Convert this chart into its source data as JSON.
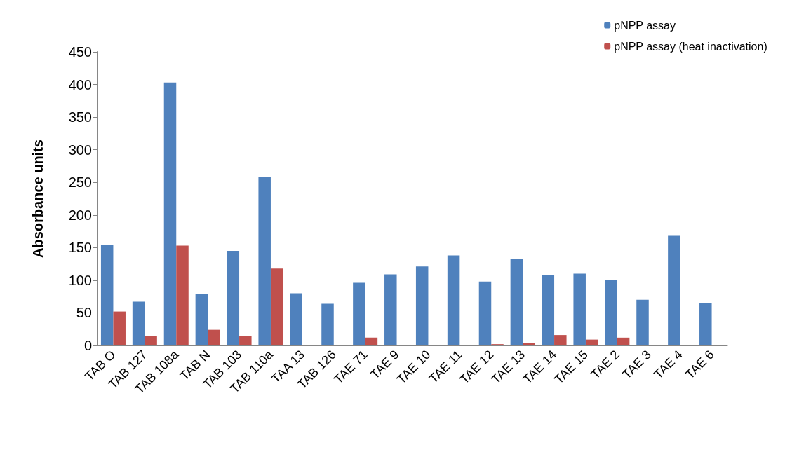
{
  "chart_data": {
    "type": "bar",
    "ylabel": "Absorbance units",
    "categories": [
      "TAB O",
      "TAB 127",
      "TAB 108a",
      "TAB N",
      "TAB 103",
      "TAB 110a",
      "TAA 13",
      "TAB 126",
      "TAE 71",
      "TAE 9",
      "TAE 10",
      "TAE 11",
      "TAE 12",
      "TAE 13",
      "TAE 14",
      "TAE 15",
      "TAE 2",
      "TAE 3",
      "TAE 4",
      "TAE 6"
    ],
    "series": [
      {
        "name": "pNPP assay",
        "color": "#4f81bd",
        "values": [
          154,
          67,
          403,
          79,
          145,
          258,
          80,
          64,
          96,
          109,
          121,
          138,
          98,
          133,
          108,
          110,
          100,
          70,
          168,
          65
        ]
      },
      {
        "name": "pNPP assay (heat inactivation)",
        "color": "#c0504d",
        "values": [
          52,
          14,
          153,
          24,
          14,
          118,
          0,
          0,
          12,
          0,
          0,
          0,
          2,
          4,
          16,
          9,
          12,
          0,
          0,
          0
        ]
      }
    ],
    "ylim": [
      0,
      450
    ],
    "yticks": [
      0,
      50,
      100,
      150,
      200,
      250,
      300,
      350,
      400,
      450
    ],
    "grid": false,
    "legend": "top right"
  }
}
